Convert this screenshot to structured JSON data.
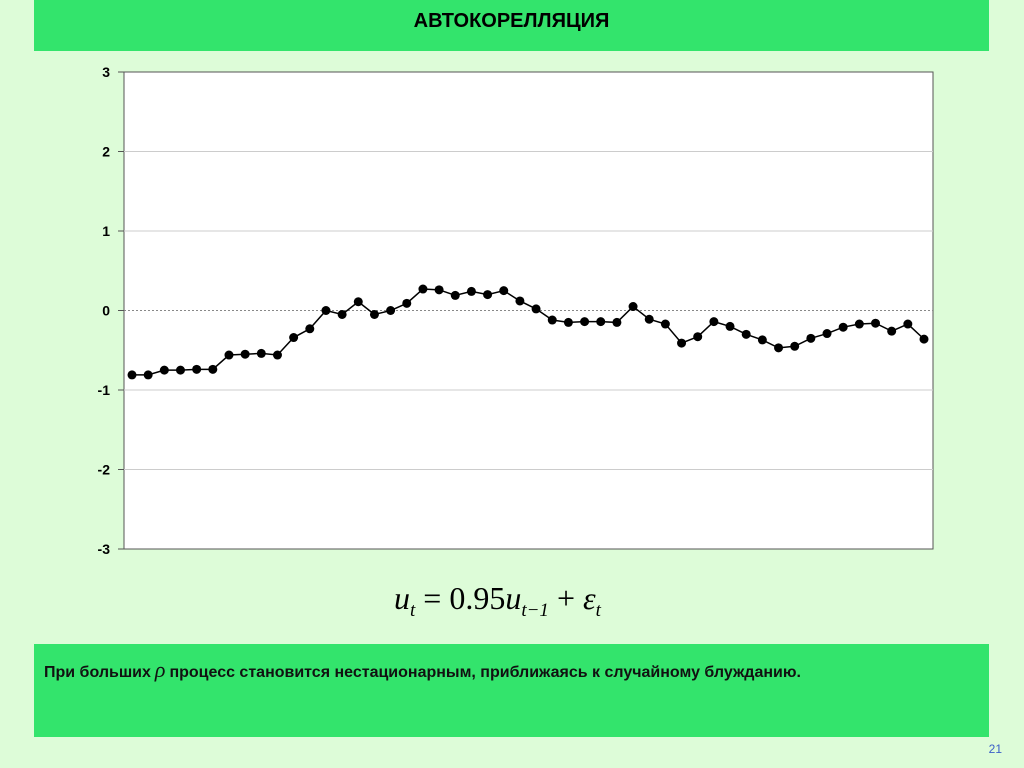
{
  "title": "АВТОКОРЕЛЛЯЦИЯ",
  "formula": {
    "u": "u",
    "t": "t",
    "eq": "=",
    "coef": "0.95",
    "t_minus_1": "t−1",
    "plus": "+",
    "eps": "ε"
  },
  "note": {
    "part1": "При больших",
    "symbol": "ρ",
    "part2": "процесс становится нестационарным, приближаясь к случайному блужданию."
  },
  "page_number": "21",
  "chart_data": {
    "type": "line",
    "xlim": [
      1,
      50
    ],
    "ylim": [
      -3,
      3
    ],
    "yticks": [
      "3",
      "2",
      "1",
      "0",
      "-1",
      "-2",
      "-3"
    ],
    "grid": true,
    "series": [
      {
        "color": "#000000",
        "x": [
          1,
          2,
          3,
          4,
          5,
          6,
          7,
          8,
          9,
          10,
          11,
          12,
          13,
          14,
          15,
          16,
          17,
          18,
          19,
          20,
          21,
          22,
          23,
          24,
          25,
          26,
          27,
          28,
          29,
          30,
          31,
          32,
          33,
          34,
          35,
          36,
          37,
          38,
          39,
          40,
          41,
          42,
          43,
          44,
          45,
          46,
          47,
          48,
          49,
          50
        ],
        "values": [
          -0.81,
          -0.81,
          -0.75,
          -0.75,
          -0.74,
          -0.74,
          -0.56,
          -0.55,
          -0.54,
          -0.56,
          -0.34,
          -0.23,
          0.0,
          -0.05,
          0.11,
          -0.05,
          0.0,
          0.09,
          0.27,
          0.26,
          0.19,
          0.24,
          0.2,
          0.25,
          0.12,
          0.02,
          -0.12,
          -0.15,
          -0.14,
          -0.14,
          -0.15,
          0.05,
          -0.11,
          -0.17,
          -0.41,
          -0.33,
          -0.14,
          -0.2,
          -0.3,
          -0.37,
          -0.47,
          -0.45,
          -0.35,
          -0.29,
          -0.21,
          -0.17,
          -0.16,
          -0.26,
          -0.17,
          -0.36
        ]
      }
    ]
  }
}
